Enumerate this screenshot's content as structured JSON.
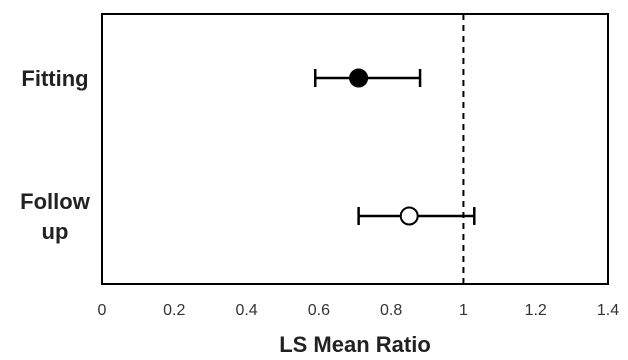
{
  "chart_data": {
    "type": "scatter",
    "subtype": "forest-plot",
    "title": "",
    "xlabel": "LS Mean Ratio",
    "ylabel": "",
    "xlim": [
      0,
      1.4
    ],
    "x_ticks": [
      "0",
      "0.2",
      "0.4",
      "0.6",
      "0.8",
      "1",
      "1.2",
      "1.4"
    ],
    "x_tick_values": [
      0,
      0.2,
      0.4,
      0.6,
      0.8,
      1.0,
      1.2,
      1.4
    ],
    "categories": [
      {
        "label_lines": [
          "Fitting"
        ],
        "estimate": 0.71,
        "ci_low": 0.59,
        "ci_high": 0.88,
        "marker": "filled-circle"
      },
      {
        "label_lines": [
          "Follow",
          "up"
        ],
        "estimate": 0.85,
        "ci_low": 0.71,
        "ci_high": 1.03,
        "marker": "open-circle"
      }
    ],
    "reference_line": {
      "x": 1.0,
      "style": "dashed"
    },
    "grid": false,
    "legend": "none",
    "colors": {
      "marker": "#000000",
      "frame": "#000000",
      "text": "#222222"
    }
  }
}
